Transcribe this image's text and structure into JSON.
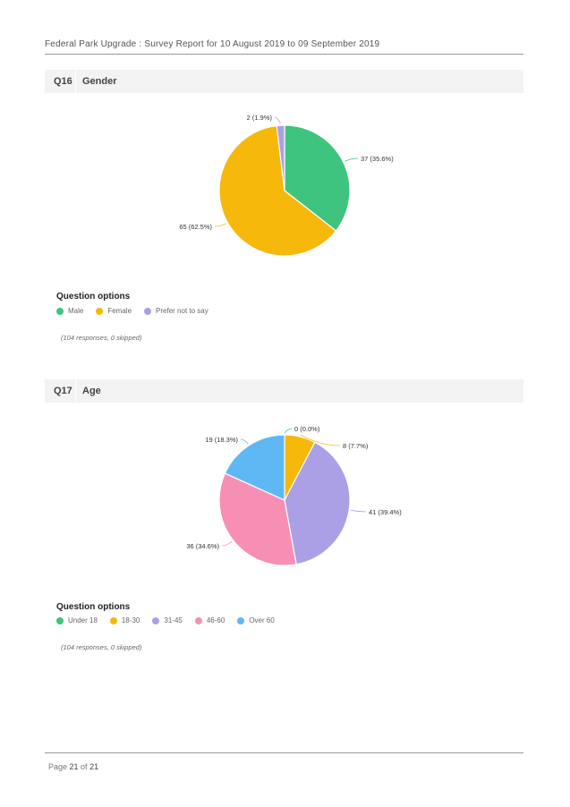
{
  "header": {
    "text": "Federal Park Upgrade : Survey Report for 10 August 2019 to 09 September 2019"
  },
  "questions": [
    {
      "number": "Q16",
      "title": "Gender",
      "options_title": "Question options",
      "responses_note": "(104 responses, 0 skipped)",
      "chart_data": {
        "type": "pie",
        "slices": [
          {
            "name": "Male",
            "value": 37,
            "label": "37 (35.6%)",
            "color": "#3ec47e"
          },
          {
            "name": "Female",
            "value": 65,
            "label": "65 (62.5%)",
            "color": "#f6b80a"
          },
          {
            "name": "Prefer not to say",
            "value": 2,
            "label": "2 (1.9%)",
            "color": "#ab9fe6"
          }
        ]
      }
    },
    {
      "number": "Q17",
      "title": "Age",
      "options_title": "Question options",
      "responses_note": "(104 responses, 0 skipped)",
      "chart_data": {
        "type": "pie",
        "slices": [
          {
            "name": "Under 18",
            "value": 0,
            "label": "0 (0.0%)",
            "color": "#3ec47e"
          },
          {
            "name": "18-30",
            "value": 8,
            "label": "8 (7.7%)",
            "color": "#f6b80a"
          },
          {
            "name": "31-45",
            "value": 41,
            "label": "41 (39.4%)",
            "color": "#ab9fe6"
          },
          {
            "name": "46-60",
            "value": 36,
            "label": "36 (34.6%)",
            "color": "#f78fb5"
          },
          {
            "name": "Over 60",
            "value": 19,
            "label": "19 (18.3%)",
            "color": "#5eb8f4"
          }
        ]
      }
    }
  ],
  "footer": {
    "prefix": "Page ",
    "page": "21",
    "middle": " of ",
    "total": "21"
  }
}
